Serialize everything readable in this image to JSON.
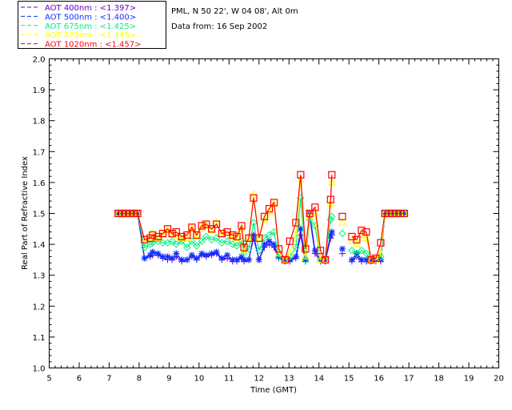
{
  "header": {
    "location": "PML, N 50 22', W 04 08', Alt 0m",
    "date": "Data from: 16 Sep 2002"
  },
  "chart_data": {
    "type": "line",
    "title": "",
    "xlabel": "Time (GMT)",
    "ylabel": "Real Part of Refractive Index",
    "xlim": [
      5,
      20
    ],
    "ylim": [
      1.0,
      2.0
    ],
    "xticks": [
      "5",
      "6",
      "7",
      "8",
      "9",
      "10",
      "11",
      "12",
      "13",
      "14",
      "15",
      "16",
      "17",
      "18",
      "19",
      "20"
    ],
    "yticks": [
      "1.0",
      "1.1",
      "1.2",
      "1.3",
      "1.4",
      "1.5",
      "1.6",
      "1.7",
      "1.8",
      "1.9",
      "2.0"
    ],
    "legend_position": "top-left outside",
    "x": [
      7.3,
      7.43,
      7.56,
      7.69,
      7.82,
      7.95,
      8.18,
      8.37,
      8.45,
      8.63,
      8.79,
      8.95,
      9.1,
      9.24,
      9.42,
      9.6,
      9.76,
      9.92,
      10.09,
      10.24,
      10.42,
      10.58,
      10.76,
      10.94,
      11.12,
      11.26,
      11.42,
      11.5,
      11.66,
      11.82,
      12.0,
      12.18,
      12.34,
      12.5,
      12.66,
      12.87,
      13.03,
      13.23,
      13.39,
      13.55,
      13.69,
      13.87,
      14.05,
      14.21,
      14.39,
      14.43,
      14.78,
      15.1,
      15.26,
      15.42,
      15.58,
      15.74,
      15.9,
      16.06,
      16.2,
      16.33,
      16.46,
      16.59,
      16.72,
      16.85
    ],
    "series": [
      {
        "name": "AOT  400nm : <1.397>",
        "color": "#6a00c8",
        "marker": "plus",
        "values": [
          1.5,
          1.5,
          1.5,
          1.5,
          1.5,
          1.5,
          1.355,
          1.36,
          1.365,
          1.365,
          1.355,
          1.35,
          1.35,
          1.36,
          1.345,
          1.35,
          1.36,
          1.35,
          1.365,
          1.36,
          1.365,
          1.37,
          1.35,
          1.355,
          1.345,
          1.345,
          1.355,
          1.345,
          1.35,
          1.42,
          1.35,
          1.39,
          1.4,
          1.39,
          1.355,
          1.345,
          1.345,
          1.355,
          1.43,
          1.345,
          1.49,
          1.37,
          1.345,
          1.345,
          1.42,
          1.43,
          1.37,
          1.345,
          1.36,
          1.345,
          1.345,
          1.345,
          1.345,
          1.345,
          1.5,
          1.5,
          1.5,
          1.5,
          1.5,
          1.5
        ]
      },
      {
        "name": "AOT  500nm : <1.400>",
        "color": "#1030ff",
        "marker": "asterisk",
        "values": [
          1.5,
          1.5,
          1.5,
          1.5,
          1.5,
          1.5,
          1.355,
          1.365,
          1.375,
          1.37,
          1.36,
          1.36,
          1.355,
          1.37,
          1.35,
          1.35,
          1.365,
          1.355,
          1.37,
          1.365,
          1.37,
          1.375,
          1.355,
          1.365,
          1.35,
          1.35,
          1.36,
          1.35,
          1.35,
          1.43,
          1.35,
          1.4,
          1.41,
          1.4,
          1.36,
          1.35,
          1.35,
          1.36,
          1.45,
          1.35,
          1.5,
          1.38,
          1.35,
          1.35,
          1.43,
          1.44,
          1.385,
          1.35,
          1.37,
          1.35,
          1.35,
          1.35,
          1.35,
          1.35,
          1.5,
          1.5,
          1.5,
          1.5,
          1.5,
          1.5
        ]
      },
      {
        "name": "AOT  675nm : <1.425>",
        "color": "#00f080",
        "marker": "diamond",
        "values": [
          1.5,
          1.5,
          1.5,
          1.5,
          1.5,
          1.5,
          1.39,
          1.4,
          1.405,
          1.41,
          1.405,
          1.405,
          1.41,
          1.4,
          1.41,
          1.39,
          1.41,
          1.395,
          1.41,
          1.425,
          1.415,
          1.42,
          1.405,
          1.41,
          1.4,
          1.395,
          1.41,
          1.37,
          1.385,
          1.47,
          1.38,
          1.42,
          1.43,
          1.44,
          1.36,
          1.35,
          1.36,
          1.39,
          1.55,
          1.35,
          1.48,
          1.46,
          1.35,
          1.35,
          1.48,
          1.49,
          1.435,
          1.38,
          1.37,
          1.38,
          1.37,
          1.35,
          1.35,
          1.36,
          1.5,
          1.5,
          1.5,
          1.5,
          1.5,
          1.5
        ]
      },
      {
        "name": "AOT  870nm : <1.448>",
        "color": "#ffff00",
        "marker": "triangle",
        "values": [
          1.5,
          1.5,
          1.5,
          1.5,
          1.5,
          1.5,
          1.41,
          1.42,
          1.435,
          1.42,
          1.43,
          1.445,
          1.43,
          1.425,
          1.42,
          1.42,
          1.45,
          1.425,
          1.455,
          1.46,
          1.445,
          1.47,
          1.43,
          1.43,
          1.425,
          1.42,
          1.45,
          1.38,
          1.42,
          1.56,
          1.42,
          1.48,
          1.505,
          1.53,
          1.37,
          1.35,
          1.37,
          1.43,
          1.61,
          1.36,
          1.49,
          1.5,
          1.35,
          1.35,
          1.53,
          1.6,
          1.47,
          1.41,
          1.4,
          1.43,
          1.42,
          1.35,
          1.35,
          1.37,
          1.5,
          1.5,
          1.5,
          1.5,
          1.5,
          1.5
        ]
      },
      {
        "name": "AOT 1020nm : <1.457>",
        "color": "#ff0000",
        "marker": "square",
        "values": [
          1.5,
          1.5,
          1.5,
          1.5,
          1.5,
          1.5,
          1.415,
          1.42,
          1.43,
          1.425,
          1.435,
          1.45,
          1.435,
          1.44,
          1.425,
          1.43,
          1.455,
          1.43,
          1.46,
          1.465,
          1.45,
          1.465,
          1.435,
          1.44,
          1.43,
          1.425,
          1.46,
          1.39,
          1.42,
          1.55,
          1.42,
          1.49,
          1.515,
          1.535,
          1.385,
          1.35,
          1.41,
          1.47,
          1.625,
          1.385,
          1.5,
          1.52,
          1.38,
          1.35,
          1.545,
          1.625,
          1.49,
          1.425,
          1.415,
          1.445,
          1.44,
          1.35,
          1.355,
          1.405,
          1.5,
          1.5,
          1.5,
          1.5,
          1.5,
          1.5
        ]
      }
    ]
  }
}
